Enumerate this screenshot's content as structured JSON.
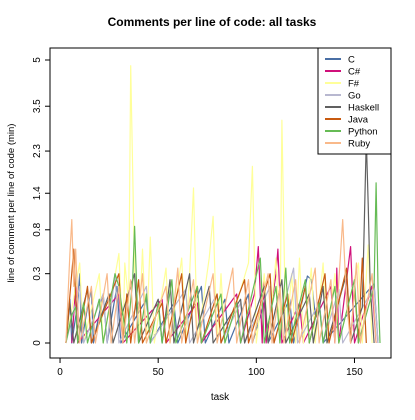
{
  "chart_data": {
    "type": "line",
    "title": "Comments per line of code: all tasks",
    "xlabel": "task",
    "ylabel": "line of comment per line of code (min)",
    "xlim": [
      1,
      163
    ],
    "ylim": [
      0,
      5
    ],
    "x_ticks": [
      0,
      50,
      100,
      150
    ],
    "y_ticks": [
      {
        "value": 0,
        "label": "0"
      },
      {
        "value": 0.3,
        "label": "0.3"
      },
      {
        "value": 0.8,
        "label": "0.8"
      },
      {
        "value": 1.4,
        "label": "1.4"
      },
      {
        "value": 2.3,
        "label": "2.3"
      },
      {
        "value": 3.5,
        "label": "3.5"
      },
      {
        "value": 5,
        "label": "5"
      }
    ],
    "y_scale": "sqrt",
    "legend_position": "top-right",
    "grid": false,
    "series": [
      {
        "name": "C",
        "color": "#4a6fa5",
        "points": [
          [
            3,
            0
          ],
          [
            5,
            0.12
          ],
          [
            6,
            0
          ],
          [
            9,
            0.1
          ],
          [
            10,
            0.3
          ],
          [
            11,
            0
          ],
          [
            14,
            0.08
          ],
          [
            16,
            0.18
          ],
          [
            17,
            0
          ],
          [
            22,
            0.15
          ],
          [
            24,
            0
          ],
          [
            29,
            0.2
          ],
          [
            31,
            0
          ],
          [
            44,
            0.12
          ],
          [
            46,
            0
          ],
          [
            58,
            0.1
          ],
          [
            60,
            0
          ],
          [
            72,
            0.2
          ],
          [
            74,
            0
          ],
          [
            84,
            0.12
          ],
          [
            86,
            0
          ],
          [
            96,
            0.15
          ],
          [
            98,
            0
          ],
          [
            104,
            0.1
          ],
          [
            106,
            0
          ],
          [
            117,
            0.12
          ],
          [
            119,
            0
          ],
          [
            126,
            0.28
          ],
          [
            128,
            0.25
          ],
          [
            130,
            0.05
          ],
          [
            132,
            0.12
          ],
          [
            134,
            0
          ],
          [
            160,
            0.22
          ],
          [
            162,
            0
          ]
        ]
      },
      {
        "name": "C#",
        "color": "#d0107a",
        "points": [
          [
            6,
            0
          ],
          [
            8,
            0.2
          ],
          [
            9,
            0
          ],
          [
            30,
            0.15
          ],
          [
            32,
            0
          ],
          [
            52,
            0.12
          ],
          [
            54,
            0
          ],
          [
            70,
            0.1
          ],
          [
            72,
            0
          ],
          [
            90,
            0.15
          ],
          [
            92,
            0
          ],
          [
            99,
            0.15
          ],
          [
            101,
            0.58
          ],
          [
            103,
            0
          ],
          [
            104,
            0.25
          ],
          [
            105,
            0
          ],
          [
            110,
            0.3
          ],
          [
            111,
            0.55
          ],
          [
            113,
            0
          ],
          [
            122,
            0.1
          ],
          [
            124,
            0
          ],
          [
            138,
            0.2
          ],
          [
            140,
            0
          ],
          [
            141,
            0.35
          ],
          [
            142,
            0
          ],
          [
            146,
            0.25
          ],
          [
            148,
            0.58
          ],
          [
            150,
            0
          ],
          [
            159,
            0.2
          ],
          [
            161,
            0
          ]
        ]
      },
      {
        "name": "F#",
        "color": "#ffff99",
        "points": [
          [
            3,
            0
          ],
          [
            10,
            0.4
          ],
          [
            12,
            0
          ],
          [
            20,
            0.3
          ],
          [
            22,
            0
          ],
          [
            30,
            0.5
          ],
          [
            32,
            0
          ],
          [
            33,
            0.4
          ],
          [
            35,
            0.1
          ],
          [
            36,
            4.8
          ],
          [
            38,
            0.3
          ],
          [
            40,
            0
          ],
          [
            42,
            0.55
          ],
          [
            44,
            0
          ],
          [
            46,
            0.7
          ],
          [
            48,
            0
          ],
          [
            54,
            0.35
          ],
          [
            56,
            0
          ],
          [
            62,
            0.45
          ],
          [
            64,
            0
          ],
          [
            66,
            0.3
          ],
          [
            68,
            1.5
          ],
          [
            70,
            0
          ],
          [
            76,
            0.45
          ],
          [
            78,
            1.0
          ],
          [
            80,
            0
          ],
          [
            82,
            0.3
          ],
          [
            84,
            0
          ],
          [
            96,
            0.4
          ],
          [
            98,
            1.95
          ],
          [
            100,
            0
          ],
          [
            104,
            0.3
          ],
          [
            106,
            0
          ],
          [
            110,
            0.45
          ],
          [
            112,
            0
          ],
          [
            113,
            3.1
          ],
          [
            115,
            0
          ],
          [
            118,
            0.3
          ],
          [
            120,
            0
          ],
          [
            122,
            0.45
          ],
          [
            124,
            0
          ],
          [
            128,
            0.35
          ],
          [
            130,
            0
          ],
          [
            134,
            0.4
          ],
          [
            136,
            0
          ],
          [
            140,
            0.3
          ],
          [
            142,
            0
          ],
          [
            152,
            0.4
          ],
          [
            154,
            0
          ],
          [
            157,
            0.6
          ],
          [
            159,
            0
          ]
        ]
      },
      {
        "name": "Go",
        "color": "#b8b8d0",
        "points": [
          [
            3,
            0
          ],
          [
            10,
            0.2
          ],
          [
            12,
            0
          ],
          [
            22,
            0.15
          ],
          [
            24,
            0
          ],
          [
            28,
            0.3
          ],
          [
            30,
            0
          ],
          [
            44,
            0.2
          ],
          [
            46,
            0
          ],
          [
            64,
            0.18
          ],
          [
            66,
            0
          ],
          [
            80,
            0.15
          ],
          [
            82,
            0
          ],
          [
            92,
            0.1
          ],
          [
            94,
            0
          ],
          [
            107,
            0.2
          ],
          [
            109,
            0
          ],
          [
            119,
            0.35
          ],
          [
            121,
            0
          ],
          [
            132,
            0.1
          ],
          [
            134,
            0
          ],
          [
            142,
            0.18
          ],
          [
            144,
            0
          ],
          [
            160,
            0.2
          ],
          [
            162,
            0
          ]
        ]
      },
      {
        "name": "Haskell",
        "color": "#606060",
        "points": [
          [
            3,
            0
          ],
          [
            5,
            0.1
          ],
          [
            7,
            0
          ],
          [
            14,
            0.18
          ],
          [
            16,
            0
          ],
          [
            25,
            0.15
          ],
          [
            27,
            0
          ],
          [
            38,
            0.3
          ],
          [
            40,
            0
          ],
          [
            50,
            0.12
          ],
          [
            52,
            0
          ],
          [
            56,
            0.25
          ],
          [
            58,
            0
          ],
          [
            66,
            0.3
          ],
          [
            68,
            0
          ],
          [
            76,
            0.2
          ],
          [
            78,
            0
          ],
          [
            92,
            0.12
          ],
          [
            94,
            0
          ],
          [
            104,
            0.2
          ],
          [
            106,
            0
          ],
          [
            113,
            0.25
          ],
          [
            115,
            0
          ],
          [
            127,
            0.15
          ],
          [
            129,
            0
          ],
          [
            134,
            0.2
          ],
          [
            136,
            0
          ],
          [
            146,
            0.3
          ],
          [
            148,
            0
          ],
          [
            154,
            0.08
          ],
          [
            156,
            2.6
          ],
          [
            157,
            1.2
          ],
          [
            158,
            0.2
          ],
          [
            160,
            0
          ]
        ]
      },
      {
        "name": "Java",
        "color": "#c85a10",
        "points": [
          [
            3,
            0
          ],
          [
            7,
            0.55
          ],
          [
            8,
            0.12
          ],
          [
            9,
            0
          ],
          [
            14,
            0.2
          ],
          [
            16,
            0
          ],
          [
            30,
            0.3
          ],
          [
            32,
            0
          ],
          [
            34,
            0.15
          ],
          [
            36,
            0
          ],
          [
            40,
            0.25
          ],
          [
            42,
            0
          ],
          [
            52,
            0.1
          ],
          [
            54,
            0
          ],
          [
            62,
            0.3
          ],
          [
            64,
            0
          ],
          [
            70,
            0.2
          ],
          [
            72,
            0
          ],
          [
            80,
            0.15
          ],
          [
            82,
            0
          ],
          [
            94,
            0.25
          ],
          [
            96,
            0
          ],
          [
            107,
            0.3
          ],
          [
            109,
            0
          ],
          [
            116,
            0.15
          ],
          [
            118,
            0
          ],
          [
            125,
            0.2
          ],
          [
            127,
            0
          ],
          [
            135,
            0.3
          ],
          [
            137,
            0
          ],
          [
            146,
            0.35
          ],
          [
            148,
            0
          ],
          [
            150,
            0.2
          ],
          [
            152,
            0
          ],
          [
            154,
            0.45
          ],
          [
            156,
            0
          ]
        ]
      },
      {
        "name": "Python",
        "color": "#66bb55",
        "points": [
          [
            3,
            0
          ],
          [
            6,
            0.05
          ],
          [
            8,
            0.08
          ],
          [
            9,
            0
          ],
          [
            12,
            0.1
          ],
          [
            14,
            0
          ],
          [
            20,
            0.12
          ],
          [
            22,
            0
          ],
          [
            28,
            0.3
          ],
          [
            30,
            0.2
          ],
          [
            32,
            0.05
          ],
          [
            34,
            0
          ],
          [
            37,
            0.25
          ],
          [
            38,
            0.85
          ],
          [
            40,
            0
          ],
          [
            44,
            0.15
          ],
          [
            46,
            0
          ],
          [
            50,
            0.1
          ],
          [
            52,
            0
          ],
          [
            57,
            0.25
          ],
          [
            59,
            0
          ],
          [
            70,
            0.2
          ],
          [
            72,
            0
          ],
          [
            82,
            0.15
          ],
          [
            84,
            0
          ],
          [
            90,
            0.1
          ],
          [
            92,
            0
          ],
          [
            102,
            0.45
          ],
          [
            104,
            0
          ],
          [
            110,
            0.2
          ],
          [
            112,
            0
          ],
          [
            115,
            0.35
          ],
          [
            117,
            0
          ],
          [
            125,
            0.25
          ],
          [
            127,
            0
          ],
          [
            132,
            0.1
          ],
          [
            134,
            0
          ],
          [
            140,
            0.2
          ],
          [
            142,
            0
          ],
          [
            150,
            0.25
          ],
          [
            152,
            0
          ],
          [
            160,
            0.2
          ],
          [
            161,
            1.6
          ],
          [
            162,
            0.2
          ],
          [
            163,
            0
          ]
        ]
      },
      {
        "name": "Ruby",
        "color": "#f9b98a",
        "points": [
          [
            3,
            0
          ],
          [
            5,
            0.5
          ],
          [
            6,
            0.95
          ],
          [
            7,
            0.2
          ],
          [
            8,
            0.55
          ],
          [
            9,
            0.1
          ],
          [
            10,
            0
          ],
          [
            16,
            0.2
          ],
          [
            18,
            0
          ],
          [
            24,
            0.3
          ],
          [
            26,
            0
          ],
          [
            30,
            0.2
          ],
          [
            32,
            0
          ],
          [
            36,
            0.25
          ],
          [
            38,
            0
          ],
          [
            42,
            0.3
          ],
          [
            44,
            0
          ],
          [
            54,
            0.2
          ],
          [
            56,
            0
          ],
          [
            60,
            0.35
          ],
          [
            62,
            0
          ],
          [
            68,
            0.25
          ],
          [
            70,
            0
          ],
          [
            78,
            0.3
          ],
          [
            80,
            0
          ],
          [
            88,
            0.35
          ],
          [
            90,
            0
          ],
          [
            96,
            0.25
          ],
          [
            98,
            0
          ],
          [
            106,
            0.3
          ],
          [
            108,
            0
          ],
          [
            112,
            0.2
          ],
          [
            114,
            0
          ],
          [
            120,
            0.25
          ],
          [
            122,
            0
          ],
          [
            130,
            0.35
          ],
          [
            132,
            0
          ],
          [
            138,
            0.25
          ],
          [
            140,
            0
          ],
          [
            144,
            0.95
          ],
          [
            146,
            0.1
          ],
          [
            148,
            0
          ],
          [
            151,
            0.4
          ],
          [
            153,
            0
          ],
          [
            159,
            0.3
          ],
          [
            161,
            0
          ]
        ]
      }
    ]
  }
}
